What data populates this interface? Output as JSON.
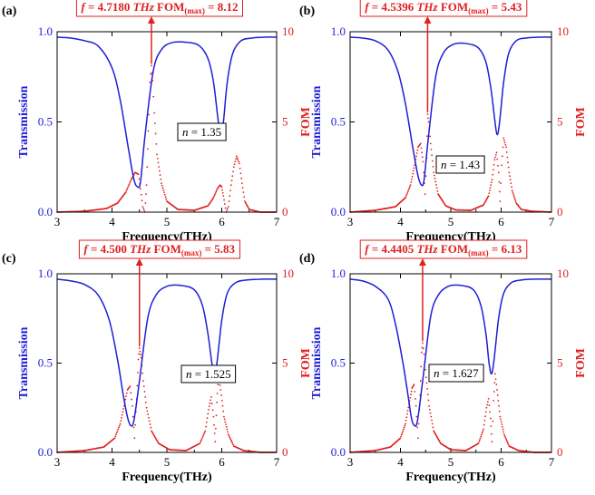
{
  "figure": {
    "colors": {
      "transmission": "#1f1fd6",
      "fom": "#e02020",
      "axis": "#000000"
    }
  },
  "chart_data": [
    {
      "type": "line",
      "panel_label": "(a)",
      "annotation": {
        "f_text": "= 4.7180",
        "unit": "THz",
        "fom_base": "FOM",
        "fom_sub": "(max)",
        "fom_value": "= 8.12"
      },
      "n_label": "= 1.35",
      "peak_frequency": 4.718,
      "fom_max": 8.12,
      "xlabel": "Frequency(THz)",
      "ylabel_left": "Transmission",
      "ylabel_right": "FOM",
      "xlim": [
        3,
        7
      ],
      "ylim_left": [
        0,
        1
      ],
      "ylim_right": [
        0,
        10
      ],
      "xticks": [
        "3",
        "4",
        "5",
        "6",
        "7"
      ],
      "yticks_left": [
        "0.0",
        "0.5",
        "1.0"
      ],
      "yticks_right": [
        "0",
        "5",
        "10"
      ],
      "series": [
        {
          "axis": "left",
          "style": "solid",
          "x": [
            3.0,
            3.25,
            3.5,
            3.75,
            4.0,
            4.15,
            4.3,
            4.4,
            4.47,
            4.52,
            4.6,
            4.75,
            4.9,
            5.1,
            5.4,
            5.6,
            5.75,
            5.85,
            5.93,
            5.98,
            6.03,
            6.1,
            6.2,
            6.35,
            6.55,
            6.8,
            7.0
          ],
          "y": [
            0.97,
            0.965,
            0.95,
            0.92,
            0.8,
            0.62,
            0.35,
            0.18,
            0.14,
            0.17,
            0.42,
            0.78,
            0.9,
            0.94,
            0.94,
            0.92,
            0.85,
            0.72,
            0.52,
            0.43,
            0.5,
            0.72,
            0.88,
            0.95,
            0.965,
            0.97,
            0.97
          ]
        },
        {
          "axis": "right",
          "style": "dotted",
          "x": [
            3.0,
            3.5,
            3.9,
            4.1,
            4.25,
            4.35,
            4.42,
            4.48,
            4.52,
            4.56,
            4.6,
            4.63,
            4.66,
            4.69,
            4.718,
            4.74,
            4.77,
            4.82,
            4.9,
            5.0,
            5.2,
            5.5,
            5.75,
            5.85,
            5.92,
            5.97,
            6.0,
            6.03,
            6.08,
            6.12,
            6.17,
            6.22,
            6.27,
            6.32,
            6.37,
            6.42,
            6.5,
            6.7,
            7.0
          ],
          "y": [
            0,
            0.05,
            0.2,
            0.5,
            1.1,
            1.8,
            2.2,
            2.1,
            1.3,
            0.3,
            0,
            1.5,
            4.5,
            7.2,
            8.12,
            7.3,
            5.5,
            3.2,
            1.6,
            0.6,
            0.15,
            0.1,
            0.35,
            0.8,
            1.3,
            1.5,
            1.4,
            0.9,
            0,
            0.3,
            1.5,
            2.5,
            3.1,
            2.7,
            1.6,
            0.6,
            0.15,
            0,
            0
          ]
        }
      ]
    },
    {
      "type": "line",
      "panel_label": "(b)",
      "annotation": {
        "f_text": "= 4.5396",
        "unit": "THz",
        "fom_base": "FOM",
        "fom_sub": "(max)",
        "fom_value": "= 5.43"
      },
      "n_label": "= 1.43",
      "peak_frequency": 4.5396,
      "fom_max": 5.43,
      "xlabel": "Frequency(THz)",
      "ylabel_left": "Transmission",
      "ylabel_right": "FOM",
      "xlim": [
        3,
        7
      ],
      "ylim_left": [
        0,
        1
      ],
      "ylim_right": [
        0,
        10
      ],
      "xticks": [
        "3",
        "4",
        "5",
        "6",
        "7"
      ],
      "yticks_left": [
        "0.0",
        "0.5",
        "1.0"
      ],
      "yticks_right": [
        "0",
        "5",
        "10"
      ],
      "series": [
        {
          "axis": "left",
          "style": "solid",
          "x": [
            3.0,
            3.25,
            3.5,
            3.75,
            3.95,
            4.1,
            4.25,
            4.35,
            4.42,
            4.47,
            4.55,
            4.7,
            4.85,
            5.05,
            5.3,
            5.55,
            5.7,
            5.8,
            5.87,
            5.92,
            5.97,
            6.05,
            6.15,
            6.3,
            6.5,
            6.8,
            7.0
          ],
          "y": [
            0.97,
            0.965,
            0.95,
            0.9,
            0.78,
            0.6,
            0.35,
            0.2,
            0.15,
            0.18,
            0.4,
            0.75,
            0.88,
            0.93,
            0.935,
            0.91,
            0.83,
            0.68,
            0.52,
            0.43,
            0.5,
            0.72,
            0.88,
            0.95,
            0.965,
            0.97,
            0.97
          ]
        },
        {
          "axis": "right",
          "style": "dotted",
          "x": [
            3.0,
            3.5,
            3.9,
            4.1,
            4.2,
            4.28,
            4.35,
            4.4,
            4.45,
            4.49,
            4.52,
            4.5396,
            4.56,
            4.6,
            4.66,
            4.75,
            4.9,
            5.1,
            5.4,
            5.65,
            5.75,
            5.82,
            5.87,
            5.91,
            5.95,
            5.98,
            6.01,
            6.05,
            6.1,
            6.16,
            6.22,
            6.3,
            6.4,
            6.6,
            7.0
          ],
          "y": [
            0,
            0.1,
            0.3,
            0.8,
            1.5,
            2.6,
            3.6,
            3.8,
            2.8,
            1.0,
            3.0,
            5.43,
            5.0,
            3.8,
            2.2,
            1.0,
            0.35,
            0.12,
            0.1,
            0.4,
            0.9,
            1.8,
            2.9,
            3.3,
            2.2,
            0.6,
            2.6,
            4.1,
            3.6,
            2.2,
            1.2,
            0.5,
            0.15,
            0.05,
            0
          ]
        }
      ]
    },
    {
      "type": "line",
      "panel_label": "(c)",
      "annotation": {
        "f_text": "= 4.500",
        "unit": "THz",
        "fom_base": "FOM",
        "fom_sub": "(max)",
        "fom_value": "= 5.83"
      },
      "n_label": "= 1.525",
      "peak_frequency": 4.5,
      "fom_max": 5.83,
      "xlabel": "Frequency(THz)",
      "ylabel_left": "Transmission",
      "ylabel_right": "FOM",
      "xlim": [
        3,
        7
      ],
      "ylim_left": [
        0,
        1
      ],
      "ylim_right": [
        0,
        10
      ],
      "xticks": [
        "3",
        "4",
        "5",
        "6",
        "7"
      ],
      "yticks_left": [
        "0.0",
        "0.5",
        "1.0"
      ],
      "yticks_right": [
        "0",
        "5",
        "10"
      ],
      "series": [
        {
          "axis": "left",
          "style": "solid",
          "x": [
            3.0,
            3.25,
            3.5,
            3.75,
            3.95,
            4.1,
            4.2,
            4.28,
            4.34,
            4.4,
            4.5,
            4.65,
            4.8,
            5.0,
            5.25,
            5.5,
            5.65,
            5.75,
            5.82,
            5.87,
            5.92,
            6.0,
            6.1,
            6.25,
            6.45,
            6.75,
            7.0
          ],
          "y": [
            0.97,
            0.96,
            0.94,
            0.88,
            0.74,
            0.52,
            0.33,
            0.2,
            0.15,
            0.18,
            0.4,
            0.75,
            0.88,
            0.93,
            0.935,
            0.91,
            0.82,
            0.66,
            0.5,
            0.44,
            0.52,
            0.74,
            0.89,
            0.95,
            0.965,
            0.97,
            0.97
          ]
        },
        {
          "axis": "right",
          "style": "dotted",
          "x": [
            3.0,
            3.5,
            3.85,
            4.05,
            4.15,
            4.22,
            4.28,
            4.33,
            4.37,
            4.41,
            4.45,
            4.48,
            4.5,
            4.53,
            4.57,
            4.63,
            4.72,
            4.85,
            5.05,
            5.35,
            5.6,
            5.7,
            5.76,
            5.81,
            5.85,
            5.88,
            5.91,
            5.94,
            5.98,
            6.04,
            6.12,
            6.22,
            6.4,
            6.7,
            7.0
          ],
          "y": [
            0,
            0.1,
            0.3,
            0.8,
            1.6,
            2.6,
            3.5,
            3.7,
            2.6,
            0.8,
            3.0,
            5.2,
            5.83,
            5.3,
            4.0,
            2.5,
            1.2,
            0.5,
            0.15,
            0.1,
            0.5,
            1.2,
            2.4,
            3.1,
            2.0,
            0.6,
            2.8,
            4.3,
            3.5,
            2.0,
            1.0,
            0.35,
            0.1,
            0,
            0
          ]
        }
      ]
    },
    {
      "type": "line",
      "panel_label": "(d)",
      "annotation": {
        "f_text": "= 4.4405",
        "unit": "THz",
        "fom_base": "FOM",
        "fom_sub": "(max)",
        "fom_value": "= 6.13"
      },
      "n_label": "= 1.627",
      "peak_frequency": 4.4405,
      "fom_max": 6.13,
      "xlabel": "Frequency(THz)",
      "ylabel_left": "Transmission",
      "ylabel_right": "FOM",
      "xlim": [
        3,
        7
      ],
      "ylim_left": [
        0,
        1
      ],
      "ylim_right": [
        0,
        10
      ],
      "xticks": [
        "3",
        "4",
        "5",
        "6",
        "7"
      ],
      "yticks_left": [
        "0.0",
        "0.5",
        "1.0"
      ],
      "yticks_right": [
        "0",
        "5",
        "10"
      ],
      "series": [
        {
          "axis": "left",
          "style": "solid",
          "x": [
            3.0,
            3.25,
            3.5,
            3.75,
            3.9,
            4.05,
            4.15,
            4.22,
            4.28,
            4.34,
            4.45,
            4.6,
            4.75,
            4.95,
            5.2,
            5.45,
            5.6,
            5.7,
            5.76,
            5.81,
            5.86,
            5.95,
            6.05,
            6.2,
            6.4,
            6.7,
            7.0
          ],
          "y": [
            0.97,
            0.96,
            0.93,
            0.86,
            0.72,
            0.5,
            0.32,
            0.19,
            0.15,
            0.18,
            0.42,
            0.76,
            0.88,
            0.93,
            0.935,
            0.91,
            0.82,
            0.66,
            0.5,
            0.44,
            0.52,
            0.75,
            0.89,
            0.95,
            0.965,
            0.97,
            0.97
          ]
        },
        {
          "axis": "right",
          "style": "dotted",
          "x": [
            3.0,
            3.5,
            3.8,
            4.0,
            4.1,
            4.17,
            4.23,
            4.27,
            4.31,
            4.35,
            4.39,
            4.42,
            4.4405,
            4.47,
            4.51,
            4.57,
            4.66,
            4.8,
            5.0,
            5.3,
            5.55,
            5.65,
            5.71,
            5.75,
            5.79,
            5.82,
            5.85,
            5.88,
            5.92,
            5.98,
            6.06,
            6.16,
            6.35,
            6.65,
            7.0
          ],
          "y": [
            0,
            0.1,
            0.3,
            0.8,
            1.6,
            2.7,
            3.6,
            3.8,
            2.6,
            0.8,
            3.2,
            5.6,
            6.13,
            5.5,
            4.2,
            2.6,
            1.2,
            0.5,
            0.15,
            0.1,
            0.5,
            1.3,
            2.5,
            3.0,
            1.9,
            0.6,
            2.9,
            4.4,
            3.5,
            2.0,
            1.0,
            0.35,
            0.1,
            0,
            0
          ]
        }
      ]
    }
  ]
}
